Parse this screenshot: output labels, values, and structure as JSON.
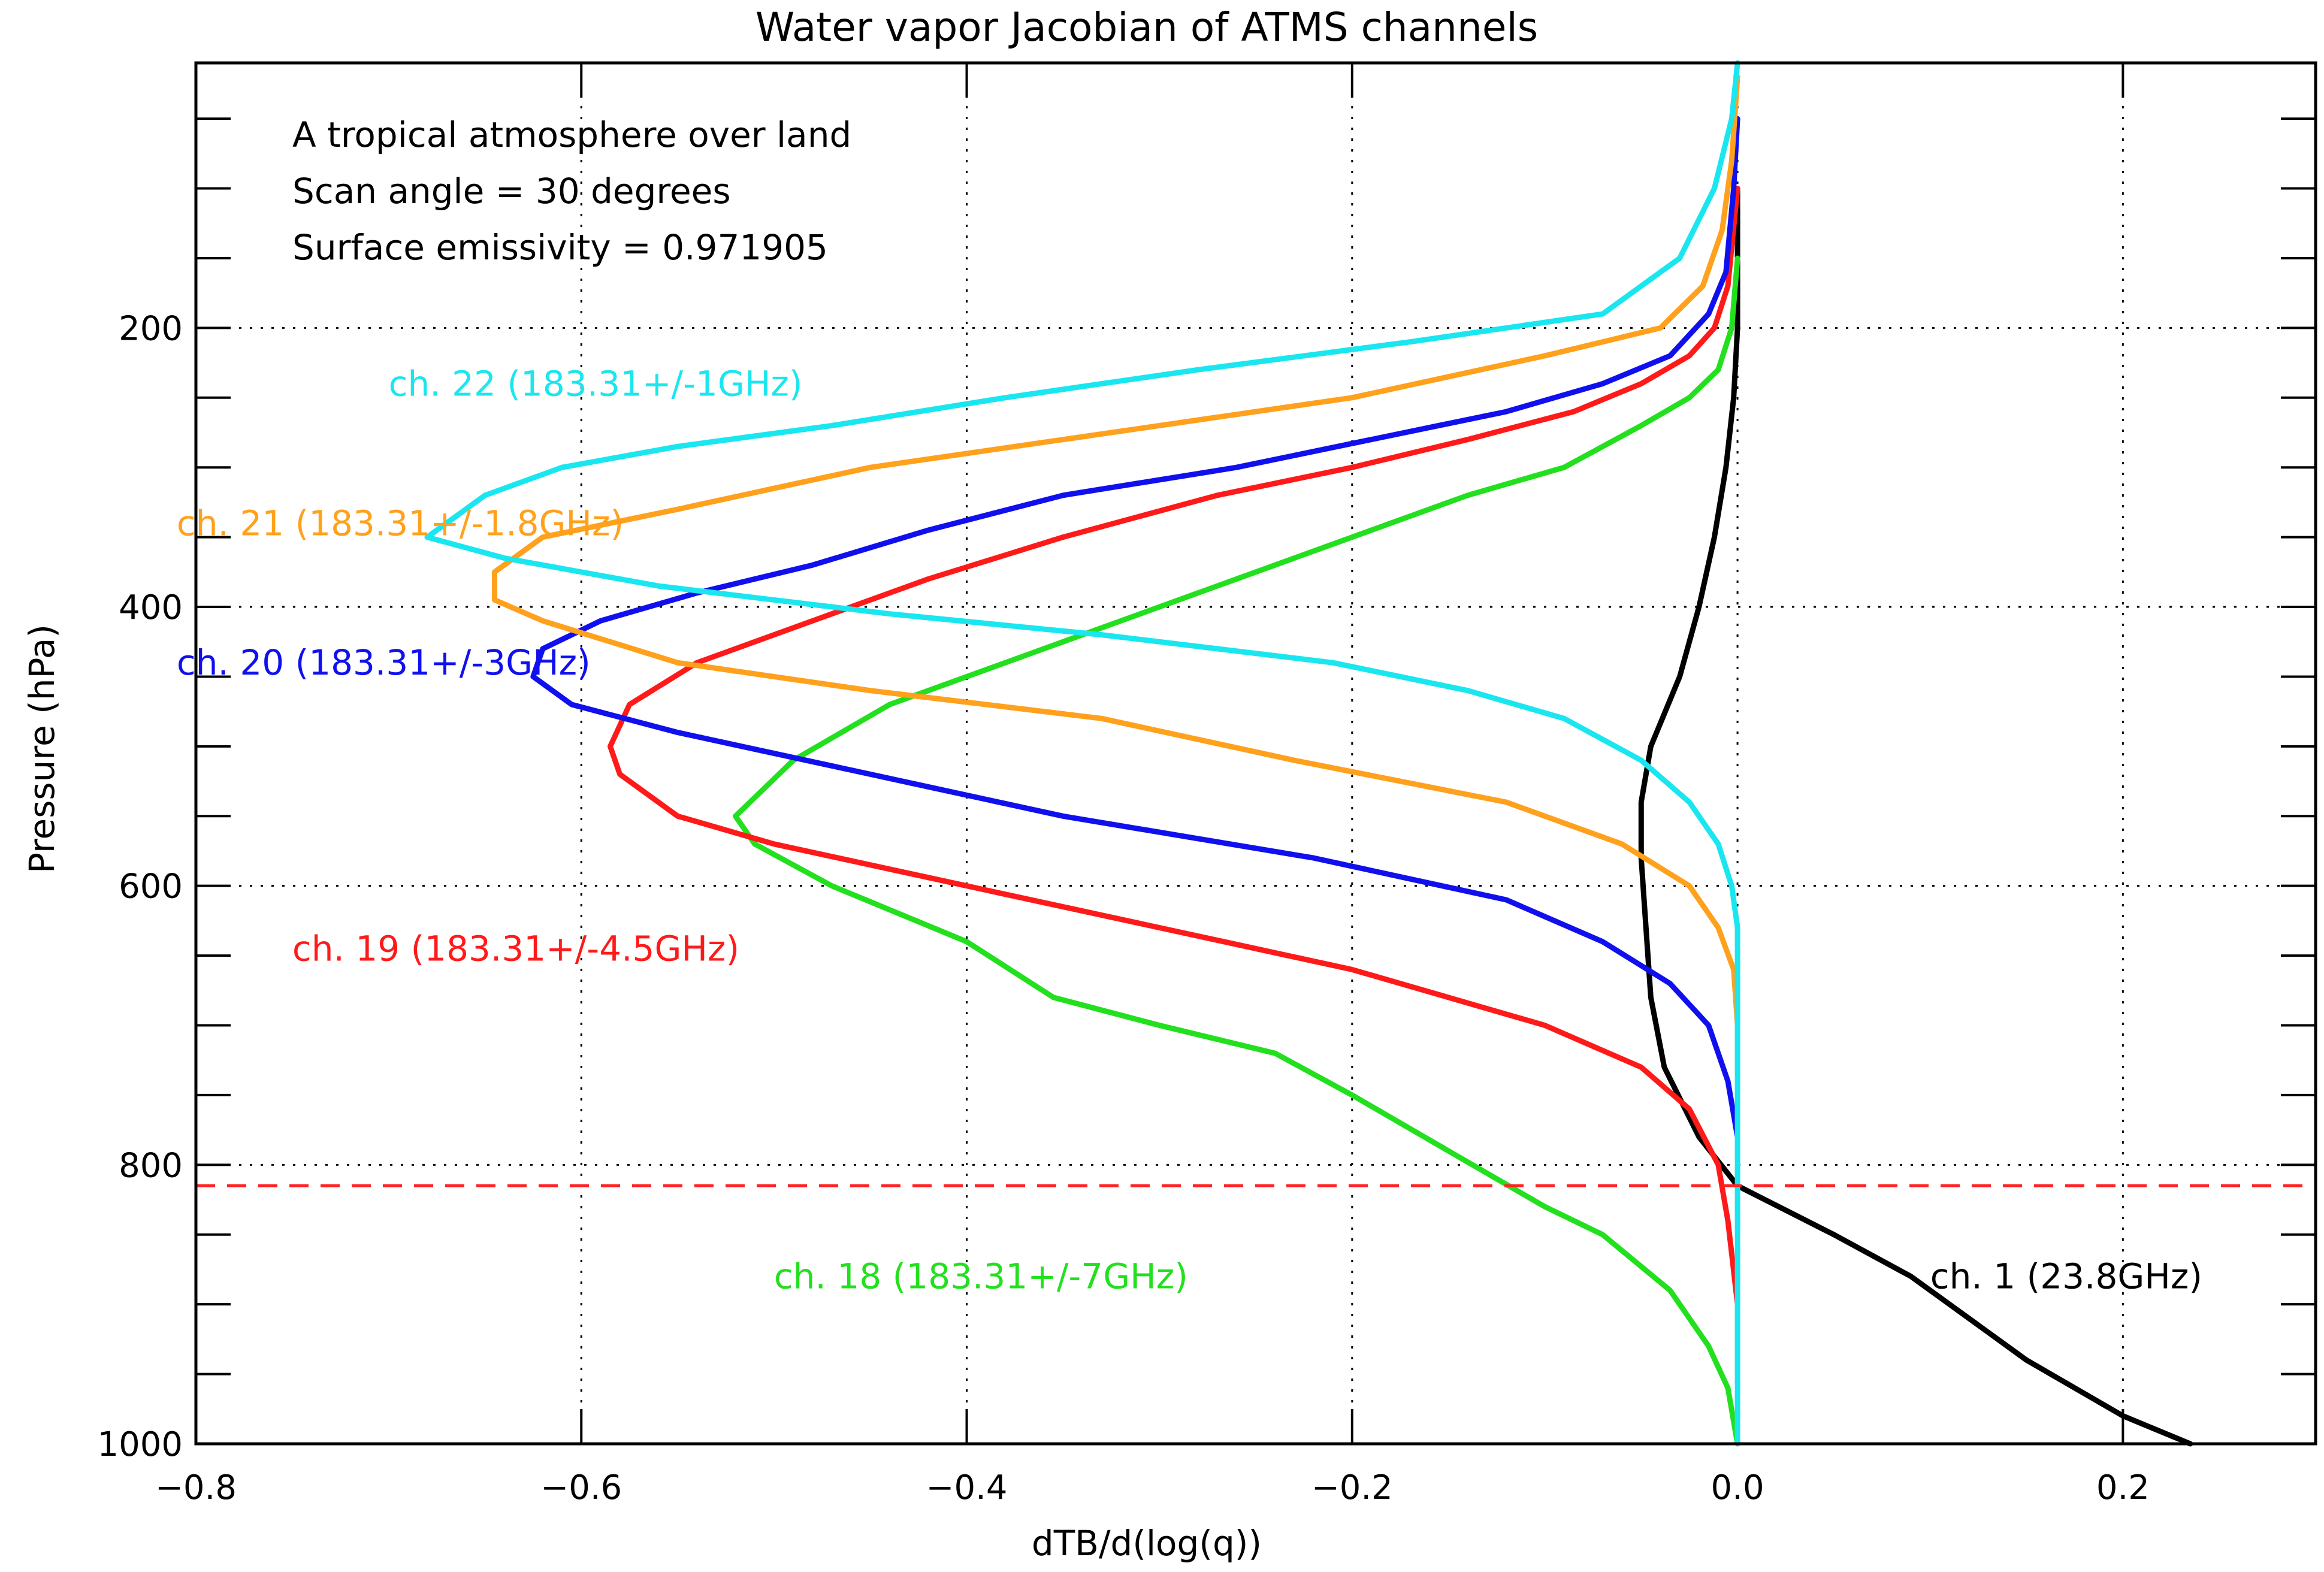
{
  "chart_data": {
    "type": "line",
    "title": "Water vapor Jacobian of ATMS channels",
    "xlabel": "dTB/d(log(q))",
    "ylabel": "Pressure (hPa)",
    "xlim": [
      -0.8,
      0.3
    ],
    "ylim": [
      1000,
      10
    ],
    "y_inverted": true,
    "x_ticks": [
      -0.8,
      -0.6,
      -0.4,
      -0.2,
      0.0,
      0.2
    ],
    "x_tick_labels": [
      "−0.8",
      "−0.6",
      "−0.4",
      "−0.2",
      "0.0",
      "0.2"
    ],
    "y_ticks": [
      200,
      400,
      600,
      800,
      1000
    ],
    "y_tick_labels": [
      "200",
      "400",
      "600",
      "800",
      "1000"
    ],
    "y_minor_ticks": [
      50,
      100,
      150,
      250,
      300,
      350,
      450,
      500,
      550,
      650,
      700,
      750,
      850,
      900,
      950
    ],
    "grid": true,
    "surface_pressure_line": {
      "pressure": 815,
      "color": "#ff2020",
      "style": "dashed"
    },
    "info_lines": [
      "A tropical atmosphere over land",
      "Scan angle = 30 degrees",
      "Surface emissivity = 0.971905"
    ],
    "series": [
      {
        "name": "ch. 1 (23.8GHz)",
        "color": "#000000",
        "label": {
          "x": 0.1,
          "p": 880
        },
        "points": [
          [
            0,
            100
          ],
          [
            0,
            200
          ],
          [
            -0.002,
            250
          ],
          [
            -0.006,
            300
          ],
          [
            -0.012,
            350
          ],
          [
            -0.02,
            400
          ],
          [
            -0.03,
            450
          ],
          [
            -0.045,
            500
          ],
          [
            -0.05,
            540
          ],
          [
            -0.05,
            580
          ],
          [
            -0.048,
            620
          ],
          [
            -0.045,
            680
          ],
          [
            -0.038,
            730
          ],
          [
            -0.02,
            780
          ],
          [
            0.0,
            815
          ],
          [
            0.05,
            850
          ],
          [
            0.09,
            880
          ],
          [
            0.15,
            940
          ],
          [
            0.2,
            980
          ],
          [
            0.235,
            1000
          ]
        ]
      },
      {
        "name": "ch. 18 (183.31+/-7GHz)",
        "color": "#22e01e",
        "label": {
          "x": -0.5,
          "p": 880
        },
        "points": [
          [
            0,
            150
          ],
          [
            -0.003,
            200
          ],
          [
            -0.01,
            230
          ],
          [
            -0.025,
            250
          ],
          [
            -0.05,
            270
          ],
          [
            -0.09,
            300
          ],
          [
            -0.14,
            320
          ],
          [
            -0.2,
            350
          ],
          [
            -0.26,
            380
          ],
          [
            -0.32,
            410
          ],
          [
            -0.38,
            440
          ],
          [
            -0.44,
            470
          ],
          [
            -0.49,
            510
          ],
          [
            -0.52,
            550
          ],
          [
            -0.51,
            570
          ],
          [
            -0.47,
            600
          ],
          [
            -0.4,
            640
          ],
          [
            -0.355,
            680
          ],
          [
            -0.3,
            700
          ],
          [
            -0.24,
            720
          ],
          [
            -0.2,
            750
          ],
          [
            -0.15,
            790
          ],
          [
            -0.1,
            830
          ],
          [
            -0.07,
            850
          ],
          [
            -0.035,
            890
          ],
          [
            -0.015,
            930
          ],
          [
            -0.005,
            960
          ],
          [
            0,
            1000
          ]
        ]
      },
      {
        "name": "ch. 19 (183.31+/-4.5GHz)",
        "color": "#ff1a1a",
        "label": {
          "x": -0.75,
          "p": 645
        },
        "points": [
          [
            0,
            100
          ],
          [
            -0.005,
            170
          ],
          [
            -0.012,
            200
          ],
          [
            -0.025,
            220
          ],
          [
            -0.05,
            240
          ],
          [
            -0.085,
            260
          ],
          [
            -0.14,
            280
          ],
          [
            -0.2,
            300
          ],
          [
            -0.27,
            320
          ],
          [
            -0.35,
            350
          ],
          [
            -0.42,
            380
          ],
          [
            -0.48,
            410
          ],
          [
            -0.54,
            440
          ],
          [
            -0.575,
            470
          ],
          [
            -0.585,
            500
          ],
          [
            -0.58,
            520
          ],
          [
            -0.55,
            550
          ],
          [
            -0.5,
            570
          ],
          [
            -0.4,
            600
          ],
          [
            -0.3,
            630
          ],
          [
            -0.2,
            660
          ],
          [
            -0.15,
            680
          ],
          [
            -0.1,
            700
          ],
          [
            -0.05,
            730
          ],
          [
            -0.025,
            760
          ],
          [
            -0.01,
            800
          ],
          [
            -0.005,
            840
          ],
          [
            0,
            900
          ]
        ]
      },
      {
        "name": "ch. 20 (183.31+/-3GHz)",
        "color": "#1010ee",
        "label": {
          "x": -0.81,
          "p": 440
        },
        "points": [
          [
            0,
            50
          ],
          [
            -0.002,
            100
          ],
          [
            -0.006,
            160
          ],
          [
            -0.015,
            190
          ],
          [
            -0.035,
            220
          ],
          [
            -0.07,
            240
          ],
          [
            -0.12,
            260
          ],
          [
            -0.19,
            280
          ],
          [
            -0.26,
            300
          ],
          [
            -0.35,
            320
          ],
          [
            -0.42,
            345
          ],
          [
            -0.48,
            370
          ],
          [
            -0.54,
            390
          ],
          [
            -0.59,
            410
          ],
          [
            -0.62,
            430
          ],
          [
            -0.625,
            450
          ],
          [
            -0.605,
            470
          ],
          [
            -0.55,
            490
          ],
          [
            -0.45,
            520
          ],
          [
            -0.35,
            550
          ],
          [
            -0.22,
            580
          ],
          [
            -0.12,
            610
          ],
          [
            -0.07,
            640
          ],
          [
            -0.035,
            670
          ],
          [
            -0.015,
            700
          ],
          [
            -0.005,
            740
          ],
          [
            0,
            780
          ]
        ]
      },
      {
        "name": "ch. 21 (183.31+/-1.8GHz)",
        "color": "#ffa11c",
        "label": {
          "x": -0.81,
          "p": 340
        },
        "points": [
          [
            0,
            20
          ],
          [
            -0.003,
            80
          ],
          [
            -0.008,
            130
          ],
          [
            -0.018,
            170
          ],
          [
            -0.04,
            200
          ],
          [
            -0.1,
            220
          ],
          [
            -0.2,
            250
          ],
          [
            -0.3,
            270
          ],
          [
            -0.45,
            300
          ],
          [
            -0.55,
            330
          ],
          [
            -0.62,
            350
          ],
          [
            -0.645,
            375
          ],
          [
            -0.645,
            395
          ],
          [
            -0.62,
            410
          ],
          [
            -0.55,
            440
          ],
          [
            -0.45,
            460
          ],
          [
            -0.33,
            480
          ],
          [
            -0.23,
            510
          ],
          [
            -0.12,
            540
          ],
          [
            -0.06,
            570
          ],
          [
            -0.025,
            600
          ],
          [
            -0.01,
            630
          ],
          [
            -0.002,
            660
          ],
          [
            0,
            700
          ]
        ]
      },
      {
        "name": "ch. 22 (183.31+/-1GHz)",
        "color": "#1ae6f0",
        "label": {
          "x": -0.7,
          "p": 240
        },
        "points": [
          [
            0,
            10
          ],
          [
            -0.003,
            50
          ],
          [
            -0.012,
            100
          ],
          [
            -0.03,
            150
          ],
          [
            -0.07,
            190
          ],
          [
            -0.17,
            210
          ],
          [
            -0.28,
            230
          ],
          [
            -0.38,
            250
          ],
          [
            -0.47,
            270
          ],
          [
            -0.55,
            285
          ],
          [
            -0.61,
            300
          ],
          [
            -0.65,
            320
          ],
          [
            -0.68,
            350
          ],
          [
            -0.64,
            365
          ],
          [
            -0.56,
            385
          ],
          [
            -0.44,
            405
          ],
          [
            -0.33,
            420
          ],
          [
            -0.21,
            440
          ],
          [
            -0.14,
            460
          ],
          [
            -0.09,
            480
          ],
          [
            -0.05,
            510
          ],
          [
            -0.025,
            540
          ],
          [
            -0.01,
            570
          ],
          [
            -0.003,
            600
          ],
          [
            0,
            630
          ],
          [
            0,
            700
          ],
          [
            0,
            800
          ],
          [
            0,
            1000
          ]
        ]
      }
    ]
  }
}
